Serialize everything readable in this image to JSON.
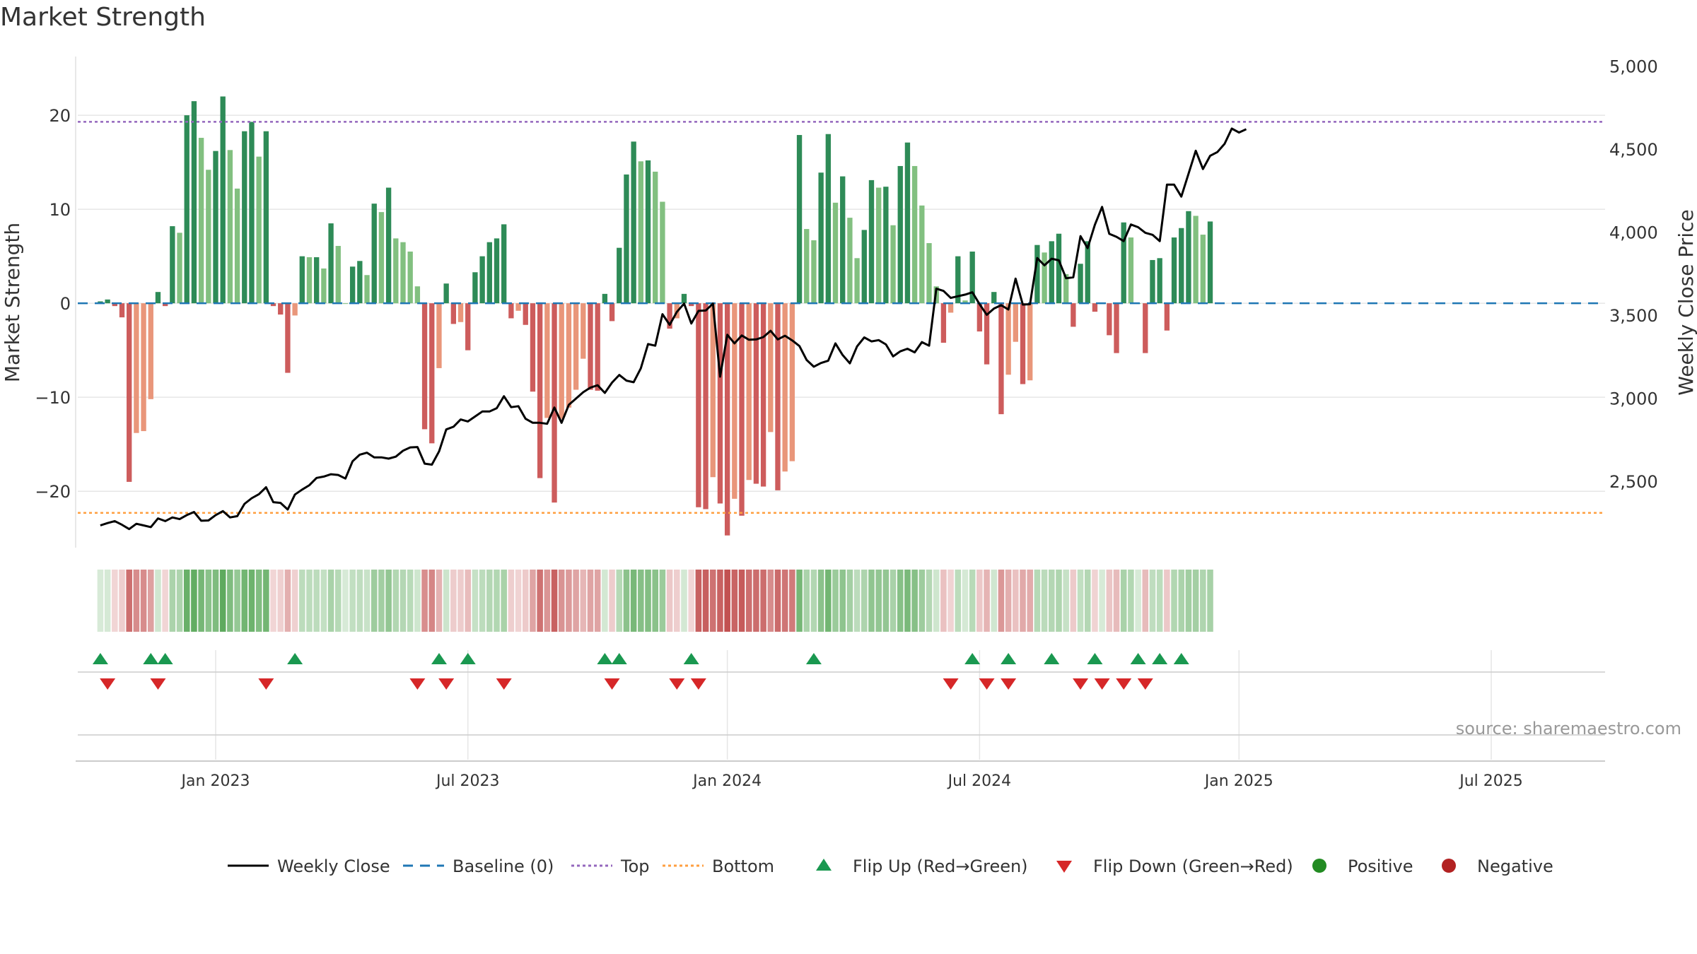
{
  "title": "Market Strength",
  "source": "source: sharemaestro.com",
  "colors": {
    "strong_green": "#2e8b57",
    "light_green": "#82c080",
    "strong_red": "#cd5c5c",
    "light_red": "#e9967a",
    "line": "#000000",
    "baseline": "#1f77b4",
    "top": "#9467bd",
    "bottom": "#ff9f40",
    "flip_up": "#1a9850",
    "flip_down": "#d62728",
    "positive": "#228b22",
    "negative": "#b22222"
  },
  "chart_data": {
    "type": "bar",
    "ylabel": "Market Strength",
    "y2label": "Weekly Close Price",
    "ylim": [
      -26,
      27
    ],
    "y2lim": [
      2100,
      5100
    ],
    "yticks": [
      "20",
      "10",
      "0",
      "−10",
      "−20"
    ],
    "y2ticks": [
      "5,000",
      "4,500",
      "4,000",
      "3,500",
      "3,000",
      "2,500"
    ],
    "xticks": [
      "Jan 2023",
      "Jul 2023",
      "Jan 2024",
      "Jul 2024",
      "Jan 2025",
      "Jul 2025"
    ],
    "top_line": 19.3,
    "bottom_line": -22.3,
    "series": [
      {
        "name": "Market Strength",
        "values": [
          0.2,
          0.4,
          -0.3,
          -1.5,
          -19,
          -13.8,
          -13.6,
          -10.2,
          1.2,
          -0.3,
          8.2,
          7.5,
          20,
          21.5,
          17.6,
          14.2,
          16.2,
          22,
          16.3,
          12.2,
          18.3,
          19.3,
          15.6,
          18.3,
          -0.3,
          -1.2,
          -7.4,
          -1.3,
          5,
          4.9,
          4.9,
          3.7,
          8.5,
          6.1,
          0,
          3.9,
          4.5,
          3,
          10.6,
          9.7,
          12.3,
          6.9,
          6.5,
          5.5,
          1.8,
          -13.4,
          -14.9,
          -6.9,
          2.1,
          -2.2,
          -2,
          -5,
          3.3,
          5,
          6.5,
          6.9,
          8.4,
          -1.6,
          -0.8,
          -2.3,
          -9.4,
          -18.6,
          -12.2,
          -21.2,
          -12.3,
          -11.1,
          -9.2,
          -5.9,
          -9.2,
          -9.3,
          1,
          -1.9,
          5.9,
          13.7,
          17.2,
          15.1,
          15.2,
          14,
          10.8,
          -2.7,
          -1.6,
          1,
          -0.3,
          -21.7,
          -21.9,
          -18.5,
          -21.3,
          -24.7,
          -20.8,
          -22.6,
          -18.8,
          -19.2,
          -19.5,
          -13.7,
          -19.9,
          -17.9,
          -16.8,
          17.9,
          7.9,
          6.7,
          13.9,
          18,
          10.7,
          13.5,
          9.1,
          4.8,
          7.8,
          13.1,
          12.3,
          12.4,
          8.3,
          14.6,
          17.1,
          14.6,
          10.4,
          6.4,
          1.8,
          -4.2,
          -1,
          5,
          0.3,
          5.5,
          -3,
          -6.5,
          1.2,
          -11.8,
          -7.6,
          -4.1,
          -8.6,
          -8.2,
          6.2,
          5.4,
          6.6,
          7.4,
          3.1,
          -2.5,
          4.2,
          6.6,
          -0.9,
          0,
          -3.4,
          -5.3,
          8.6,
          7,
          0,
          -5.3,
          4.6,
          4.8,
          -2.9,
          7,
          8,
          9.8,
          9.3,
          7.3,
          8.7
        ]
      },
      {
        "name": "Weekly Close",
        "values": [
          2234,
          2248,
          2260,
          2238,
          2212,
          2244,
          2234,
          2224,
          2276,
          2260,
          2282,
          2272,
          2296,
          2315,
          2262,
          2264,
          2296,
          2320,
          2282,
          2290,
          2364,
          2398,
          2422,
          2464,
          2374,
          2370,
          2330,
          2420,
          2450,
          2476,
          2520,
          2528,
          2542,
          2538,
          2516,
          2620,
          2660,
          2672,
          2644,
          2644,
          2636,
          2648,
          2684,
          2704,
          2706,
          2606,
          2600,
          2680,
          2812,
          2828,
          2872,
          2860,
          2890,
          2920,
          2920,
          2940,
          3012,
          2946,
          2952,
          2876,
          2852,
          2852,
          2846,
          2944,
          2852,
          2960,
          2998,
          3036,
          3064,
          3078,
          3032,
          3094,
          3140,
          3106,
          3096,
          3180,
          3326,
          3316,
          3506,
          3442,
          3520,
          3570,
          3450,
          3526,
          3528,
          3570,
          3130,
          3382,
          3330,
          3378,
          3352,
          3354,
          3368,
          3406,
          3354,
          3376,
          3348,
          3314,
          3230,
          3190,
          3212,
          3226,
          3330,
          3260,
          3210,
          3312,
          3366,
          3342,
          3350,
          3324,
          3252,
          3282,
          3298,
          3276,
          3338,
          3316,
          3660,
          3646,
          3604,
          3614,
          3624,
          3638,
          3566,
          3502,
          3540,
          3560,
          3534,
          3720,
          3564,
          3566,
          3844,
          3800,
          3840,
          3830,
          3722,
          3728,
          3976,
          3904,
          4044,
          4152,
          3990,
          3972,
          3946,
          4046,
          4030,
          3996,
          3984,
          3946,
          4286,
          4286,
          4214,
          4352,
          4490,
          4380,
          4460,
          4482,
          4532,
          4624,
          4600,
          4620
        ]
      },
      {
        "name": "Strength Tint",
        "values": [
          0.2,
          0.4,
          -0.3,
          -1.5,
          -19,
          -13.8,
          -13.6,
          -10.2,
          1.2,
          -0.3,
          8.2,
          7.5,
          20,
          21.5,
          17.6,
          14.2,
          16.2,
          22,
          16.3,
          12.2,
          18.3,
          19.3,
          15.6,
          18.3,
          -0.3,
          -1.2,
          -7.4,
          -1.3,
          5,
          4.9,
          4.9,
          3.7,
          8.5,
          6.1,
          0,
          3.9,
          4.5,
          3,
          10.6,
          9.7,
          12.3,
          6.9,
          6.5,
          5.5,
          1.8,
          -13.4,
          -14.9,
          -6.9,
          2.1,
          -2.2,
          -2,
          -5,
          3.3,
          5,
          6.5,
          6.9,
          8.4,
          -1.6,
          -0.8,
          -2.3,
          -9.4,
          -18.6,
          -12.2,
          -21.2,
          -12.3,
          -11.1,
          -9.2,
          -5.9,
          -9.2,
          -9.3,
          1,
          -1.9,
          5.9,
          13.7,
          17.2,
          15.1,
          15.2,
          14,
          10.8,
          -2.7,
          -1.6,
          1,
          -0.3,
          -21.7,
          -21.9,
          -18.5,
          -21.3,
          -24.7,
          -20.8,
          -22.6,
          -18.8,
          -19.2,
          -19.5,
          -13.7,
          -19.9,
          -17.9,
          -16.8,
          17.9,
          7.9,
          6.7,
          13.9,
          18,
          10.7,
          13.5,
          9.1,
          4.8,
          7.8,
          13.1,
          12.3,
          12.4,
          8.3,
          14.6,
          17.1,
          14.6,
          10.4,
          6.4,
          1.8,
          -4.2,
          -1,
          5,
          0.3,
          5.5,
          -3,
          -6.5,
          1.2,
          -11.8,
          -7.6,
          -4.1,
          -8.6,
          -8.2,
          6.2,
          5.4,
          6.6,
          7.4,
          3.1,
          -2.5,
          4.2,
          6.6,
          -0.9,
          0,
          -3.4,
          -5.3,
          8.6,
          7,
          0,
          -5.3,
          4.6,
          4.8,
          -2.9,
          7,
          8,
          9.8,
          9.3,
          7.3,
          8.7
        ]
      }
    ],
    "flip_up_weeks": [
      1,
      8,
      10,
      28,
      48,
      52,
      71,
      73,
      83,
      100,
      122,
      127,
      133,
      139,
      145,
      148,
      151
    ],
    "flip_down_weeks": [
      2,
      9,
      24,
      45,
      49,
      57,
      72,
      81,
      84,
      119,
      124,
      127,
      137,
      140,
      143,
      146
    ],
    "legend": {
      "position": "bottom",
      "entries": [
        "Weekly Close",
        "Baseline (0)",
        "Top",
        "Bottom",
        "Flip Up (Red→Green)",
        "Flip Down (Green→Red)",
        "Positive",
        "Negative"
      ]
    }
  }
}
